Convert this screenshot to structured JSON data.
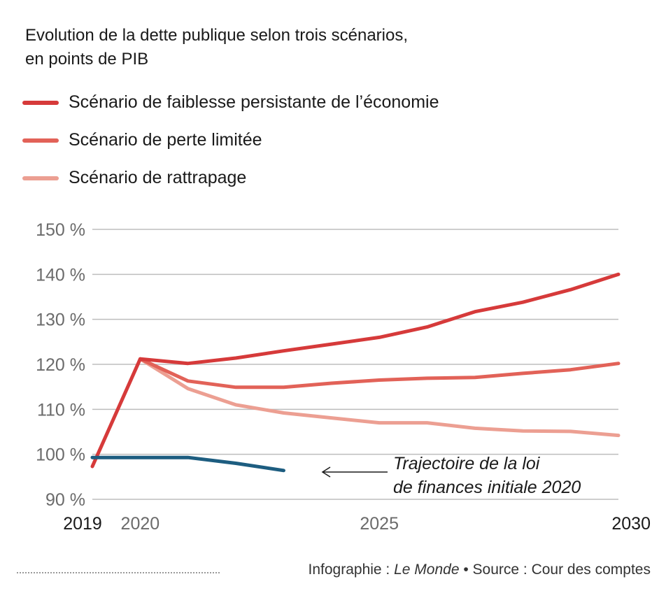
{
  "header": {
    "title_line1": "Evolution de la dette publique selon trois scénarios,",
    "title_line2": "en points de PIB"
  },
  "colors": {
    "scenario_faiblesse": "#d63a3a",
    "scenario_perte": "#e26258",
    "scenario_rattrapage": "#ec9f92",
    "loi_finances": "#1d5d80",
    "grid": "#bdbdbd",
    "axis_text": "#6b6b6b"
  },
  "annotation": {
    "line1": "Trajectoire de la loi",
    "line2": "de finances initiale 2020"
  },
  "footer": {
    "infographie_label": "Infographie : ",
    "infographie_source": "Le Monde",
    "source_text": " • Source : Cour des comptes"
  },
  "chart_data": {
    "type": "line",
    "title": "Evolution de la dette publique selon trois scénarios, en points de PIB",
    "ylabel": "",
    "xlabel": "",
    "ylim": [
      90,
      150
    ],
    "xlim": [
      2019,
      2030
    ],
    "y_ticks": [
      "150 %",
      "140 %",
      "130 %",
      "120 %",
      "110 %",
      "100 %",
      "90 %"
    ],
    "y_tick_values": [
      150,
      140,
      130,
      120,
      110,
      100,
      90
    ],
    "x_ticks": [
      "2019",
      "2020",
      "2025",
      "2030"
    ],
    "x_tick_values": [
      2019,
      2020,
      2025,
      2030
    ],
    "grid": "horizontal",
    "legend_position": "top-left",
    "series": [
      {
        "name": "Scénario de faiblesse persistante de l’économie",
        "color": "#d63a3a",
        "x": [
          2019,
          2020,
          2021,
          2022,
          2023,
          2024,
          2025,
          2026,
          2027,
          2028,
          2029,
          2030
        ],
        "values": [
          97.3,
          121.2,
          120.2,
          121.4,
          123.0,
          124.5,
          126.0,
          128.3,
          131.7,
          133.8,
          136.6,
          140.0
        ]
      },
      {
        "name": "Scénario de perte limitée",
        "color": "#e26258",
        "x": [
          2020,
          2021,
          2022,
          2023,
          2024,
          2025,
          2026,
          2027,
          2028,
          2029,
          2030
        ],
        "values": [
          121.2,
          116.3,
          114.9,
          114.9,
          115.8,
          116.5,
          116.9,
          117.1,
          118.0,
          118.8,
          120.2
        ]
      },
      {
        "name": "Scénario de rattrapage",
        "color": "#ec9f92",
        "x": [
          2020,
          2021,
          2022,
          2023,
          2024,
          2025,
          2026,
          2027,
          2028,
          2029,
          2030
        ],
        "values": [
          121.2,
          114.6,
          111.0,
          109.2,
          108.1,
          107.0,
          107.0,
          105.8,
          105.2,
          105.1,
          104.2
        ]
      },
      {
        "name": "Trajectoire de la loi de finances initiale 2020",
        "color": "#1d5d80",
        "x": [
          2019,
          2020,
          2021,
          2022,
          2023
        ],
        "values": [
          99.3,
          99.3,
          99.3,
          98.0,
          96.4
        ]
      }
    ]
  }
}
